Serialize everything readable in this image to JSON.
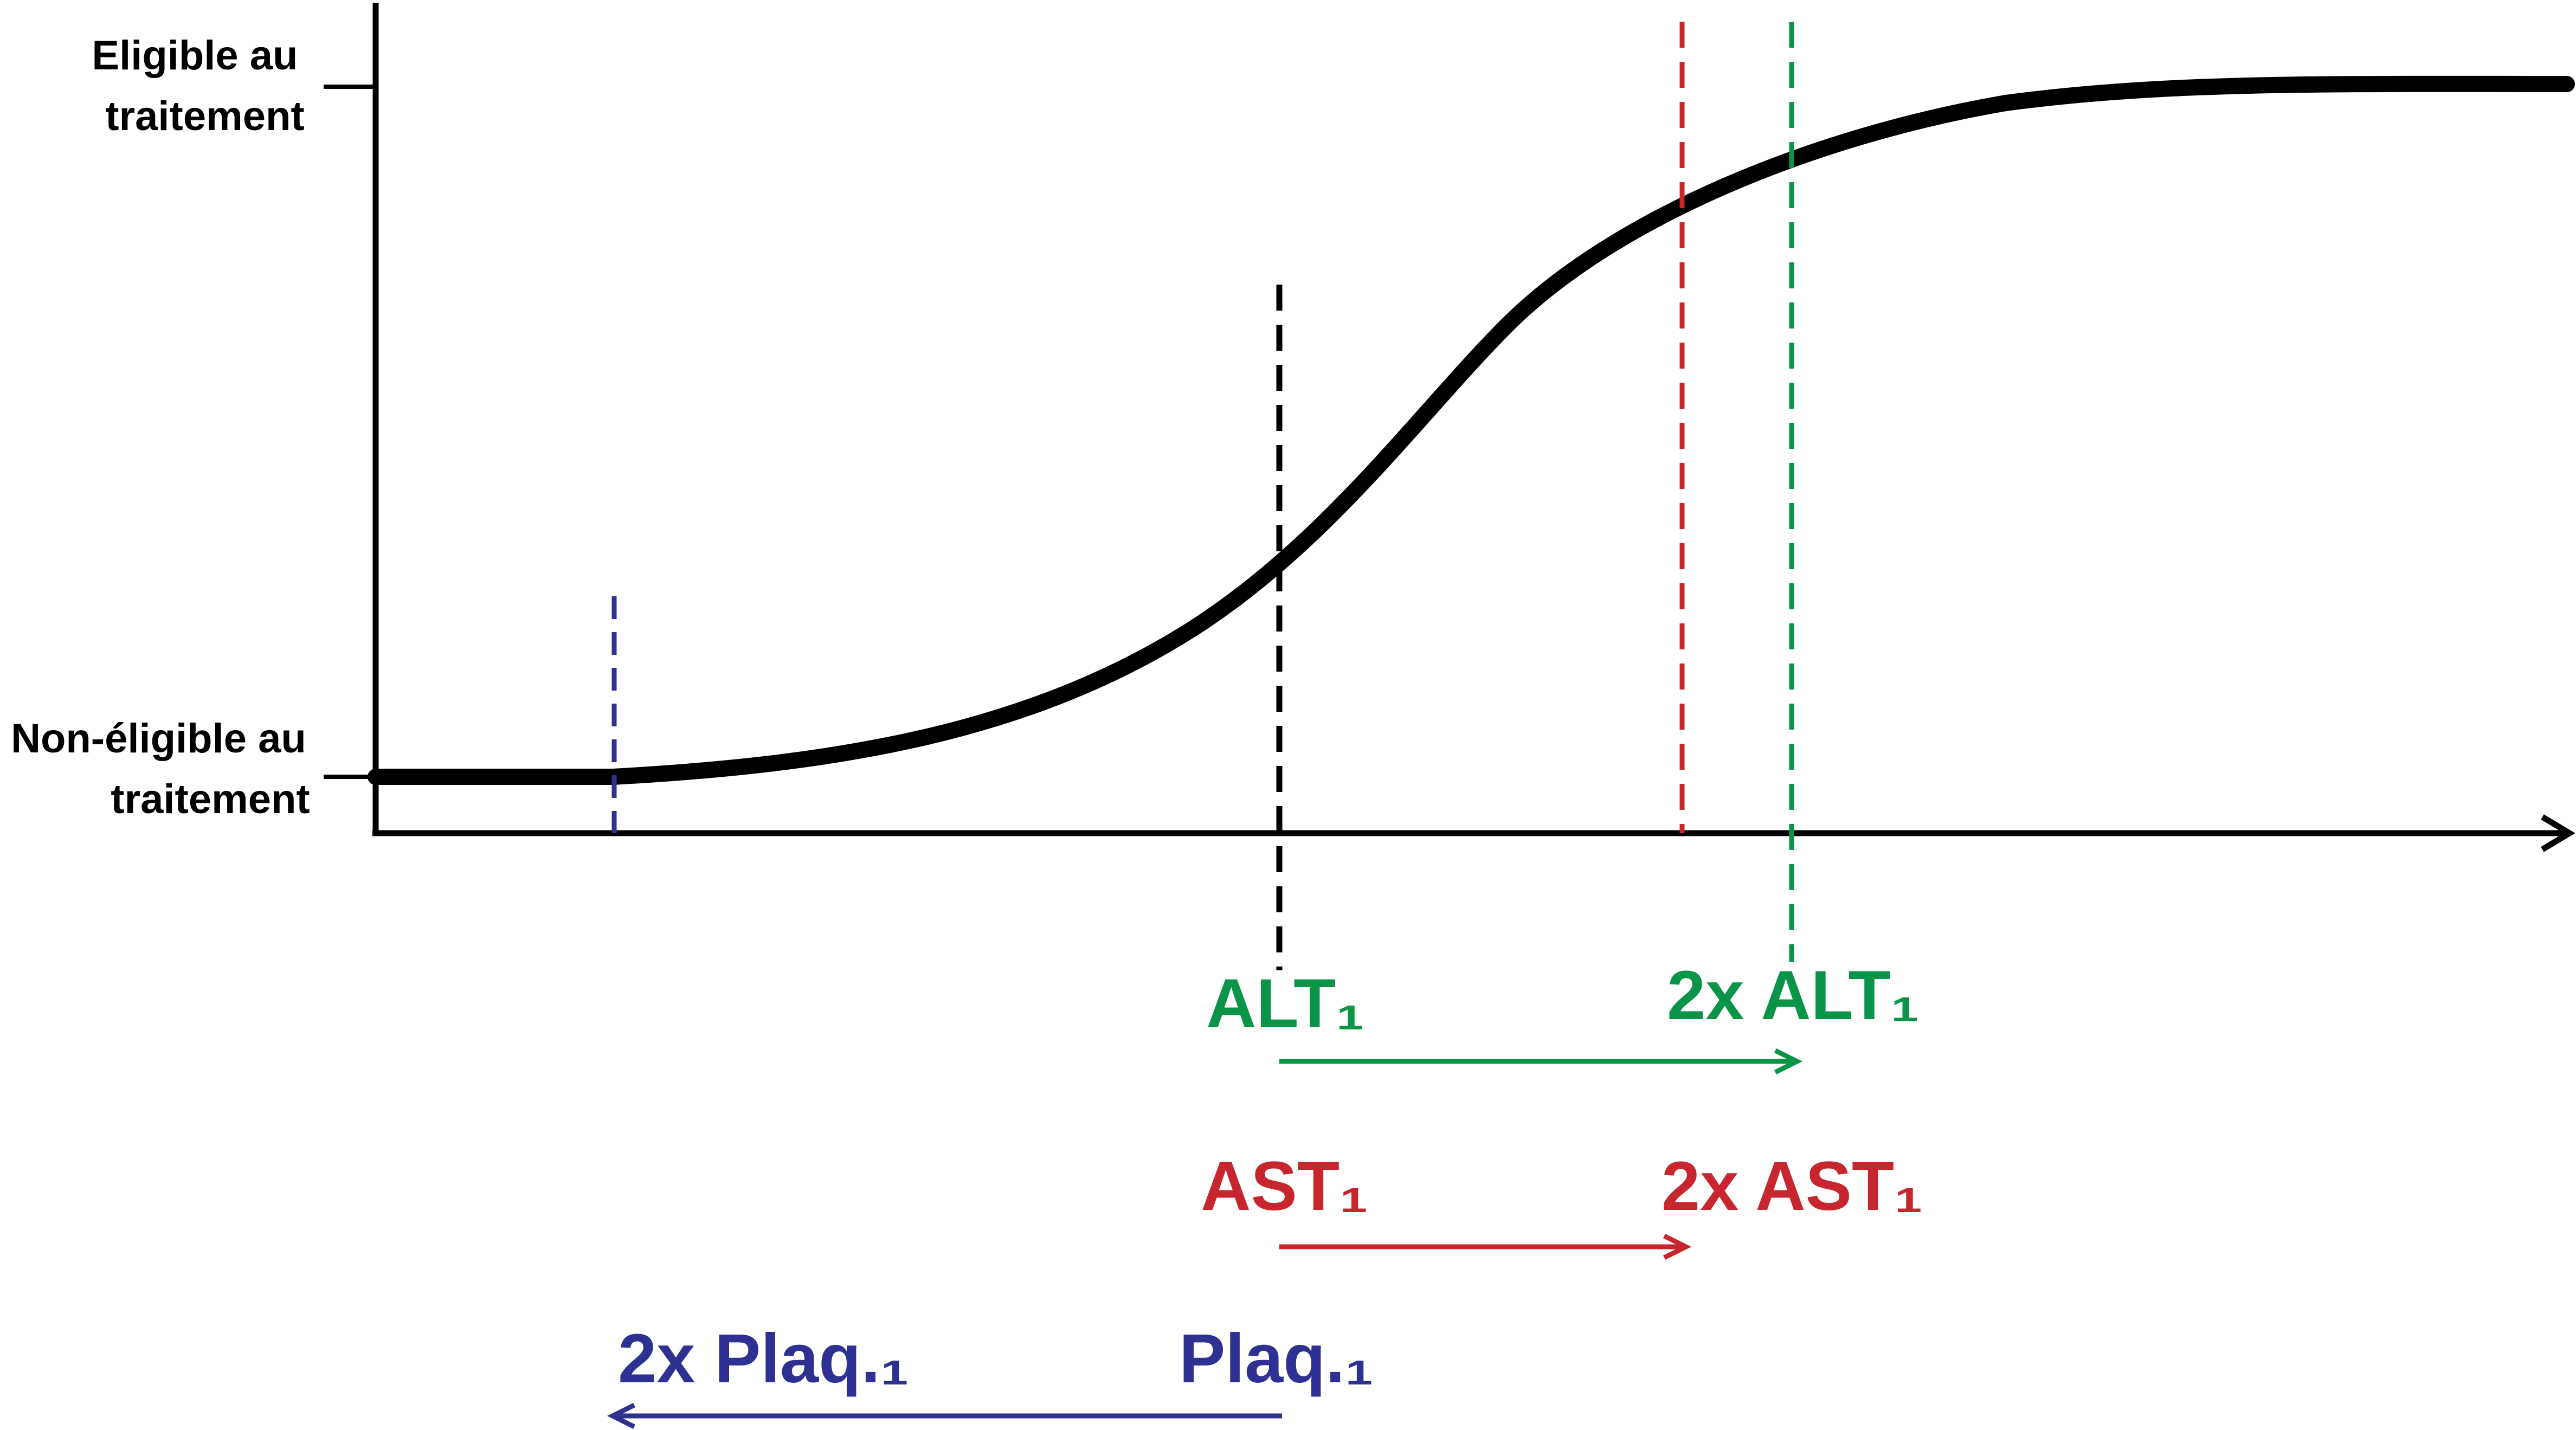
{
  "y_axis": {
    "top_label": [
      "Eligible au",
      "traitement"
    ],
    "bottom_label": [
      "Non-éligible au",
      "traitement"
    ]
  },
  "annotations": {
    "alt": {
      "start": "ALT₁",
      "end": "2x ALT₁",
      "color": "#0a9447"
    },
    "ast": {
      "start": "AST₁",
      "end": "2x AST₁",
      "color": "#c8262e"
    },
    "plaq": {
      "start": "Plaq.₁",
      "end": "2x Plaq.₁",
      "color": "#2e3192"
    }
  },
  "colors": {
    "curve": "#000000",
    "alt_line": "#0a9447",
    "ast_line": "#c8262e",
    "plaq_line": "#2e3192",
    "reference_line": "#000000"
  }
}
